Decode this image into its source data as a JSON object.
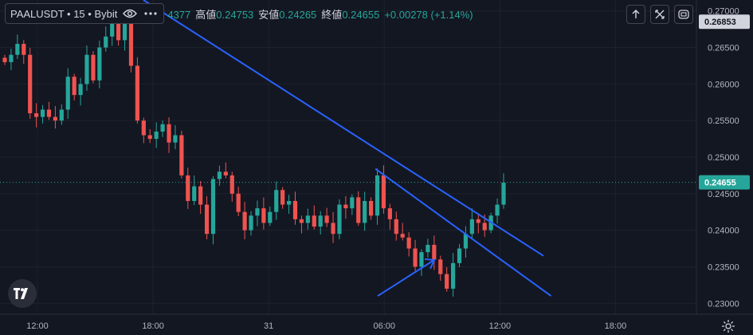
{
  "header": {
    "symbol": "PAALUSDT • 15 • Bybit",
    "ohlc_open_partial": "4377",
    "high_label": "高値",
    "high_value": "0.24753",
    "low_label": "安値",
    "low_value": "0.24265",
    "close_label": "終値",
    "close_value": "0.24655",
    "change": "+0.00278 (+1.14%)"
  },
  "icons": [
    "eye-icon",
    "settings-dots-icon",
    "arrow-up-icon",
    "expand-icon",
    "screenshot-icon",
    "tradingview-logo",
    "gear-icon"
  ],
  "colors": {
    "up": "#26a69a",
    "down": "#ef5350",
    "line": "#2962ff",
    "badge": "#26a69a",
    "bg": "#131722"
  },
  "chart_data": {
    "type": "candlestick",
    "y_axis": {
      "min": 0.2285,
      "max": 0.2715,
      "ticks": [
        "0.27000",
        "0.26500",
        "0.26000",
        "0.25500",
        "0.25000",
        "0.24500",
        "0.24000",
        "0.23500",
        "0.23000"
      ]
    },
    "x_axis": {
      "ticks": [
        "12:00",
        "18:00",
        "31",
        "06:00",
        "12:00",
        "18:00"
      ]
    },
    "price_badges": [
      {
        "label": "0.26853",
        "value": 0.26853,
        "style": "dark"
      },
      {
        "label": "0.24655",
        "value": 0.24655,
        "style": "green"
      }
    ],
    "last_price": 0.24655,
    "trendlines": [
      {
        "from": [
          0,
          0.2715
        ],
        "to": [
          1,
          0.2365
        ]
      },
      {
        "from": [
          0.62,
          0.2484
        ],
        "to": [
          0.91,
          0.231
        ]
      }
    ],
    "annotation_arrow": {
      "from": [
        0.56,
        0.231
      ],
      "to": [
        0.65,
        0.2355
      ]
    },
    "path": [
      0.263,
      0.264,
      0.2655,
      0.264,
      0.256,
      0.2555,
      0.2565,
      0.2555,
      0.255,
      0.2565,
      0.261,
      0.2585,
      0.26,
      0.264,
      0.2605,
      0.265,
      0.2665,
      0.269,
      0.266,
      0.2685,
      0.2625,
      0.255,
      0.253,
      0.2525,
      0.2535,
      0.2545,
      0.252,
      0.253,
      0.2475,
      0.244,
      0.246,
      0.2435,
      0.2395,
      0.247,
      0.248,
      0.2475,
      0.245,
      0.2425,
      0.24,
      0.242,
      0.243,
      0.241,
      0.2425,
      0.2455,
      0.2435,
      0.244,
      0.2415,
      0.241,
      0.242,
      0.2405,
      0.242,
      0.241,
      0.2395,
      0.2435,
      0.243,
      0.2445,
      0.241,
      0.244,
      0.242,
      0.2475,
      0.243,
      0.2415,
      0.2395,
      0.239,
      0.2375,
      0.235,
      0.237,
      0.238,
      0.236,
      0.234,
      0.232,
      0.2355,
      0.2375,
      0.2395,
      0.2415,
      0.241,
      0.24,
      0.242,
      0.2435,
      0.2465
    ]
  }
}
